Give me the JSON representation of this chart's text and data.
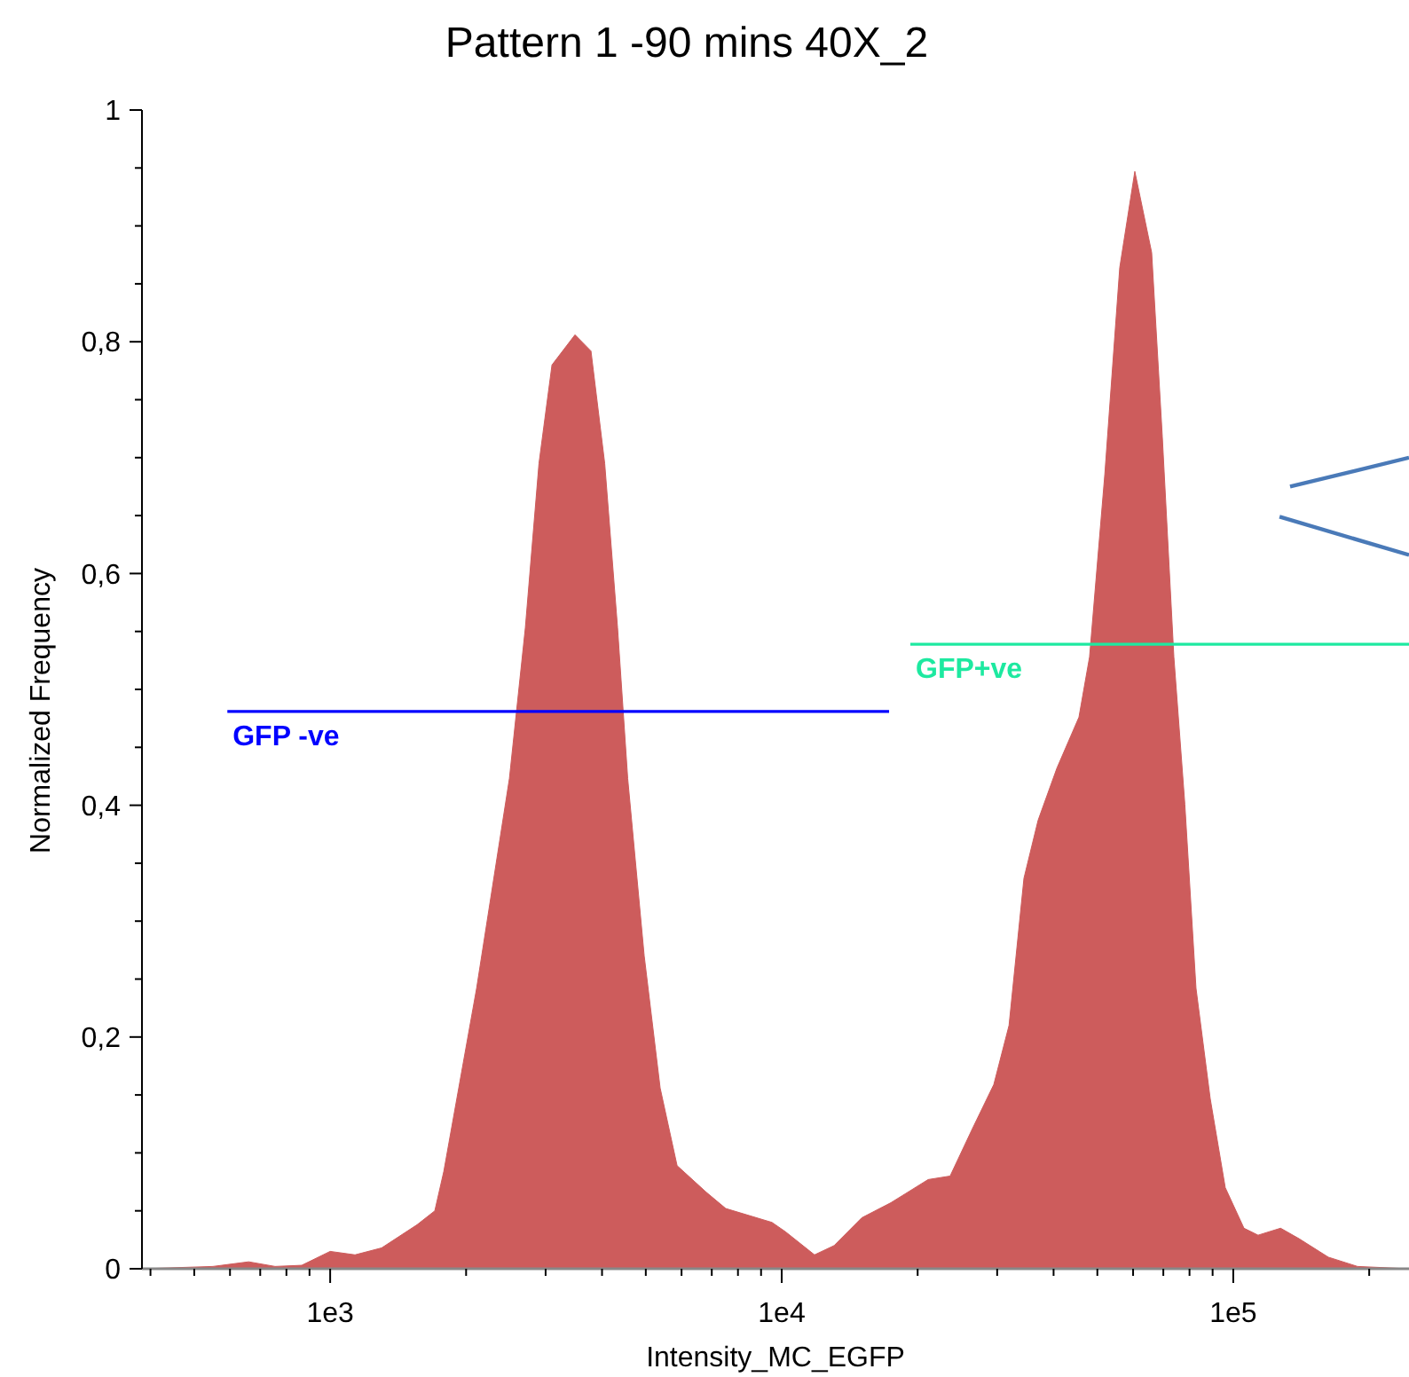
{
  "chart_data": {
    "type": "area",
    "title": "Pattern 1 -90 mins 40X_2",
    "xlabel": "Intensity_MC_EGFP",
    "ylabel": "Normalized Frequency",
    "log": "x",
    "grid": false,
    "xlim": [
      383,
      245000
    ],
    "xticks": [
      {
        "value": 400,
        "label": null
      },
      {
        "value": 500,
        "label": null
      },
      {
        "value": 600,
        "label": null
      },
      {
        "value": 700,
        "label": null
      },
      {
        "value": 800,
        "label": null
      },
      {
        "value": 900,
        "label": null
      },
      {
        "value": 1000,
        "label": "1e3"
      },
      {
        "value": 2000,
        "label": null
      },
      {
        "value": 3000,
        "label": null
      },
      {
        "value": 4000,
        "label": null
      },
      {
        "value": 5000,
        "label": null
      },
      {
        "value": 6000,
        "label": null
      },
      {
        "value": 7000,
        "label": null
      },
      {
        "value": 8000,
        "label": null
      },
      {
        "value": 9000,
        "label": null
      },
      {
        "value": 10000,
        "label": "1e4"
      },
      {
        "value": 20000,
        "label": null
      },
      {
        "value": 30000,
        "label": null
      },
      {
        "value": 40000,
        "label": null
      },
      {
        "value": 50000,
        "label": null
      },
      {
        "value": 60000,
        "label": null
      },
      {
        "value": 70000,
        "label": null
      },
      {
        "value": 80000,
        "label": null
      },
      {
        "value": 90000,
        "label": null
      },
      {
        "value": 100000,
        "label": "1e5"
      },
      {
        "value": 200000,
        "label": null
      }
    ],
    "ylim": [
      0,
      1
    ],
    "yticks": [
      0,
      {
        "value": 0.05,
        "label": null
      },
      {
        "value": 0.1,
        "label": null
      },
      {
        "value": 0.15,
        "label": null
      },
      {
        "value": 0.2,
        "label": "0,2"
      },
      {
        "value": 0.25,
        "label": null
      },
      {
        "value": 0.3,
        "label": null
      },
      {
        "value": 0.35,
        "label": null
      },
      {
        "value": 0.4,
        "label": "0,4"
      },
      {
        "value": 0.45,
        "label": null
      },
      {
        "value": 0.5,
        "label": null
      },
      {
        "value": 0.55,
        "label": null
      },
      {
        "value": 0.6,
        "label": "0,6"
      },
      {
        "value": 0.65,
        "label": null
      },
      {
        "value": 0.7,
        "label": null
      },
      {
        "value": 0.75,
        "label": null
      },
      {
        "value": 0.8,
        "label": "0,8"
      },
      {
        "value": 0.85,
        "label": null
      },
      {
        "value": 0.9,
        "label": null
      },
      {
        "value": 0.95,
        "label": null
      },
      1
    ],
    "series": [
      {
        "color": "#cd5c5c",
        "x": [
          383,
          550,
          660,
          755,
          865,
          1000,
          1135,
          1300,
          1558,
          1705,
          1785,
          2110,
          2494,
          2705,
          2900,
          3099,
          3485,
          3781,
          4055,
          4330,
          4560,
          4960,
          5380,
          5865,
          6808,
          7517,
          9515,
          10190,
          11820,
          13060,
          15040,
          17450,
          21100,
          23600,
          26450,
          29490,
          31870,
          34390,
          36960,
          40680,
          45520,
          48050,
          51950,
          56050,
          60530,
          65960,
          69640,
          73870,
          78110,
          82700,
          88900,
          96000,
          105600,
          113500,
          127300,
          139800,
          162400,
          188400,
          245000
        ],
        "values": [
          0,
          0.002,
          0.006,
          0.002,
          0.003,
          0.015,
          0.012,
          0.018,
          0.038,
          0.05,
          0.084,
          0.242,
          0.423,
          0.553,
          0.695,
          0.78,
          0.806,
          0.792,
          0.695,
          0.553,
          0.423,
          0.27,
          0.156,
          0.089,
          0.066,
          0.052,
          0.04,
          0.032,
          0.012,
          0.02,
          0.044,
          0.057,
          0.077,
          0.08,
          0.121,
          0.159,
          0.21,
          0.337,
          0.387,
          0.432,
          0.476,
          0.528,
          0.686,
          0.864,
          0.947,
          0.877,
          0.718,
          0.528,
          0.401,
          0.242,
          0.147,
          0.07,
          0.035,
          0.029,
          0.035,
          0.026,
          0.01,
          0.002,
          0
        ]
      },
      {
        "type": "line",
        "name": "GFP -ve",
        "color": "#0000ff",
        "x": [
          592,
          17290
        ],
        "values": [
          0.481,
          0.481
        ]
      },
      {
        "type": "line",
        "name": "GFP+ve",
        "color": "#1de9a0",
        "x": [
          19270,
          245000
        ],
        "values": [
          0.539,
          0.539
        ]
      },
      {
        "type": "line",
        "color": "#4a7ab8",
        "x": [
          133600,
          245000
        ],
        "values": [
          0.675,
          0.7
        ]
      },
      {
        "type": "line",
        "color": "#4a7ab8",
        "x": [
          126600,
          245000
        ],
        "values": [
          0.649,
          0.616
        ]
      }
    ]
  }
}
